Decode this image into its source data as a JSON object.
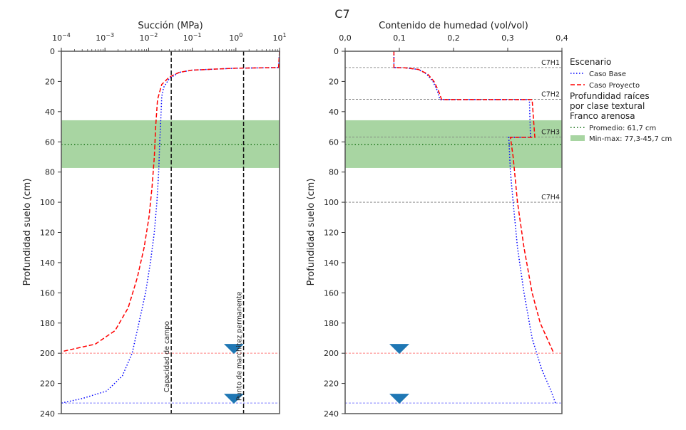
{
  "figure_title": "C7",
  "chart_data": [
    {
      "type": "line",
      "id": "suction",
      "title": "",
      "xlabel": "Succión (MPa)",
      "ylabel": "Profundidad suelo (cm)",
      "xscale": "log",
      "xlim": [
        0.0001,
        10
      ],
      "ylim": [
        240,
        0
      ],
      "x_ticks": [
        0.0001,
        0.001,
        0.01,
        0.1,
        1,
        10
      ],
      "x_tick_labels": [
        [
          "10",
          "−4"
        ],
        [
          "10",
          "−3"
        ],
        [
          "10",
          "−2"
        ],
        [
          "10",
          "−1"
        ],
        [
          "10",
          "0"
        ],
        [
          "10",
          "1"
        ]
      ],
      "y_ticks": [
        0,
        20,
        40,
        60,
        80,
        100,
        120,
        140,
        160,
        180,
        200,
        220,
        240
      ],
      "x_axis_position": "top",
      "series": [
        {
          "name": "Caso Base",
          "color": "#0000ff",
          "style": "dotted",
          "points": [
            [
              10,
              0
            ],
            [
              9.5,
              10.8
            ],
            [
              1,
              11.2
            ],
            [
              0.1,
              12.5
            ],
            [
              0.05,
              14
            ],
            [
              0.03,
              18
            ],
            [
              0.022,
              24
            ],
            [
              0.02,
              30
            ],
            [
              0.019,
              45
            ],
            [
              0.018,
              60
            ],
            [
              0.017,
              80
            ],
            [
              0.0155,
              100
            ],
            [
              0.0135,
              120
            ],
            [
              0.011,
              140
            ],
            [
              0.0085,
              160
            ],
            [
              0.006,
              180
            ],
            [
              0.0042,
              200
            ],
            [
              0.0025,
              215
            ],
            [
              0.0011,
              225
            ],
            [
              0.0003,
              230
            ],
            [
              0.0001,
              233
            ]
          ]
        },
        {
          "name": "Caso Proyecto",
          "color": "#ff0000",
          "style": "dashed",
          "points": [
            [
              10,
              0
            ],
            [
              9.5,
              10.8
            ],
            [
              1,
              11.2
            ],
            [
              0.1,
              12.5
            ],
            [
              0.05,
              14
            ],
            [
              0.03,
              17
            ],
            [
              0.02,
              22
            ],
            [
              0.016,
              32
            ],
            [
              0.0145,
              50
            ],
            [
              0.0135,
              70
            ],
            [
              0.012,
              90
            ],
            [
              0.0102,
              110
            ],
            [
              0.0079,
              130
            ],
            [
              0.0055,
              150
            ],
            [
              0.0034,
              170
            ],
            [
              0.0017,
              185
            ],
            [
              0.0006,
              194
            ],
            [
              0.0001,
              199
            ]
          ]
        }
      ],
      "vertical_lines": [
        {
          "label": "Capacidad de campo",
          "x": 0.033
        },
        {
          "label": "Punto de marchitez permanente",
          "x": 1.5
        }
      ],
      "water_tables": [
        {
          "depth": 200,
          "color": "#ff8080"
        },
        {
          "depth": 233,
          "color": "#8080ff"
        }
      ],
      "water_table_marker_x": 0.9,
      "roots_band": {
        "min": 45.7,
        "max": 77.3,
        "mean": 61.7
      }
    },
    {
      "type": "line",
      "id": "moisture",
      "title": "",
      "xlabel": "Contenido de humedad (vol/vol)",
      "ylabel": "Profundidad suelo (cm)",
      "xlim": [
        0.0,
        0.4
      ],
      "ylim": [
        240,
        0
      ],
      "x_ticks": [
        0.0,
        0.1,
        0.2,
        0.3,
        0.4
      ],
      "x_tick_labels": [
        "0,0",
        "0,1",
        "0,2",
        "0,3",
        "0,4"
      ],
      "y_ticks": [
        0,
        20,
        40,
        60,
        80,
        100,
        120,
        140,
        160,
        180,
        200,
        220,
        240
      ],
      "x_axis_position": "top",
      "series": [
        {
          "name": "Caso Base",
          "color": "#0000ff",
          "style": "dotted",
          "points": [
            [
              0.09,
              0
            ],
            [
              0.09,
              10.8
            ],
            [
              0.11,
              11
            ],
            [
              0.135,
              12
            ],
            [
              0.15,
              15
            ],
            [
              0.162,
              20
            ],
            [
              0.17,
              26
            ],
            [
              0.175,
              32
            ],
            [
              0.34,
              32
            ],
            [
              0.342,
              57
            ],
            [
              0.302,
              57
            ],
            [
              0.305,
              80
            ],
            [
              0.31,
              100
            ],
            [
              0.318,
              130
            ],
            [
              0.33,
              160
            ],
            [
              0.345,
              190
            ],
            [
              0.362,
              210
            ],
            [
              0.38,
              225
            ],
            [
              0.388,
              233
            ]
          ]
        },
        {
          "name": "Caso Proyecto",
          "color": "#ff0000",
          "style": "dashed",
          "points": [
            [
              0.09,
              0
            ],
            [
              0.09,
              10.8
            ],
            [
              0.11,
              11
            ],
            [
              0.135,
              12
            ],
            [
              0.152,
              15
            ],
            [
              0.164,
              20
            ],
            [
              0.172,
              26
            ],
            [
              0.178,
              32
            ],
            [
              0.345,
              32
            ],
            [
              0.35,
              57
            ],
            [
              0.305,
              57
            ],
            [
              0.31,
              70
            ],
            [
              0.318,
              100
            ],
            [
              0.33,
              130
            ],
            [
              0.345,
              160
            ],
            [
              0.36,
              180
            ],
            [
              0.385,
              200
            ]
          ]
        }
      ],
      "horizon_lines": [
        {
          "label": "C7H1",
          "depth": 10.8
        },
        {
          "label": "C7H2",
          "depth": 31.8
        },
        {
          "label": "C7H3",
          "depth": 56.8
        },
        {
          "label": "C7H4",
          "depth": 100
        }
      ],
      "water_tables": [
        {
          "depth": 200,
          "color": "#ff8080"
        },
        {
          "depth": 233,
          "color": "#8080ff"
        }
      ],
      "water_table_marker_x": 0.1,
      "roots_band": {
        "min": 45.7,
        "max": 77.3,
        "mean": 61.7
      }
    }
  ],
  "legend": {
    "placement": "right",
    "heading1": "Escenario",
    "items1": [
      {
        "label": "Caso Base",
        "color": "#0000ff",
        "style": "dotted"
      },
      {
        "label": "Caso Proyecto",
        "color": "#ff0000",
        "style": "dashed"
      }
    ],
    "heading2_lines": [
      "Profundidad raíces",
      "por clase textural",
      "Franco arenosa"
    ],
    "items2": [
      {
        "label": "Promedio: 61,7 cm",
        "color": "#006400",
        "style": "dotted"
      },
      {
        "label": "Min-max: 77,3-45,7 cm",
        "color": "#a8d5a2",
        "style": "patch"
      }
    ]
  },
  "colors": {
    "band": "#a8d5a2",
    "mean_line": "#006400",
    "marker": "#1f77b4",
    "axis": "#555555"
  }
}
